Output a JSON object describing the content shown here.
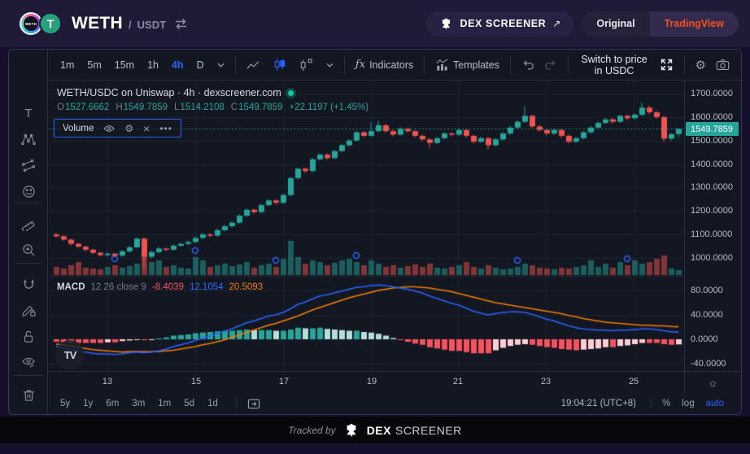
{
  "header": {
    "pair_base": "WETH",
    "pair_sep": "/",
    "pair_quote": "USDT",
    "dex_button": "DEX SCREENER",
    "dex_arrow": "↗",
    "tab_original": "Original",
    "tab_tradingview": "TradingView"
  },
  "toolbar": {
    "tf": [
      "1m",
      "5m",
      "15m",
      "1h",
      "4h",
      "D"
    ],
    "active_tf": "4h",
    "fx": "ƒx",
    "indicators": "Indicators",
    "templates": "Templates",
    "switch_label": "Switch to price in USDC"
  },
  "sidebar": {
    "tools": [
      "text",
      "xabcd-pattern",
      "parallel-channel",
      "emoji",
      "ruler",
      "zoom-in",
      "magnet",
      "drawing-lock",
      "lock-open",
      "hide-drawings",
      "remove-drawings",
      "object-tree"
    ]
  },
  "legend": {
    "title": "WETH/USDC on Uniswap · 4h · dexscreener.com",
    "o_label": "O",
    "o": "1527.6662",
    "h_label": "H",
    "h": "1549.7859",
    "l_label": "L",
    "l": "1514.2108",
    "c_label": "C",
    "c": "1549.7859",
    "change": "+22.1197 (+1.45%)"
  },
  "volume_box": {
    "label": "Volume",
    "more": "•••",
    "close": "×"
  },
  "macd_legend": {
    "name": "MACD",
    "params": "12 26 close 9",
    "hist_value": "-8.4039",
    "macd_value": "12.1054",
    "signal_value": "20.5093"
  },
  "price_axis": {
    "labels": [
      "1700.0000",
      "1600.0000",
      "1500.0000",
      "1400.0000",
      "1300.0000",
      "1200.0000",
      "1100.0000",
      "1000.0000"
    ],
    "badge": "1549.7859"
  },
  "macd_axis": {
    "labels": [
      "80.0000",
      "40.0000",
      "0.0000",
      "-40.0000"
    ],
    "gear": "☼"
  },
  "time_axis": {
    "labels": [
      "13",
      "15",
      "17",
      "19",
      "21",
      "23",
      "25"
    ]
  },
  "bottom": {
    "ranges": [
      "5y",
      "1y",
      "6m",
      "3m",
      "1m",
      "5d",
      "1d"
    ],
    "time": "19:04:21 (UTC+8)",
    "percent": "%",
    "log": "log",
    "auto": "auto"
  },
  "footer": {
    "tracked": "Tracked by",
    "brand_bold": "DEX",
    "brand_light": "SCREENER"
  },
  "tv_watermark": "TV",
  "chart_data": {
    "type": "candlestick",
    "pair": "WETH/USDC",
    "venue": "Uniswap",
    "interval": "4h",
    "current_price": 1549.7859,
    "price_axis_ticks": [
      1700,
      1600,
      1500,
      1400,
      1300,
      1200,
      1100,
      1000
    ],
    "macd_axis_ticks": [
      80,
      40,
      0,
      -40
    ],
    "x_day_labels": [
      13,
      15,
      17,
      19,
      21,
      23,
      25
    ],
    "candles": [
      [
        1100,
        1106,
        1086,
        1092,
        10
      ],
      [
        1092,
        1096,
        1072,
        1078,
        8
      ],
      [
        1078,
        1082,
        1054,
        1060,
        12
      ],
      [
        1060,
        1066,
        1042,
        1048,
        16
      ],
      [
        1048,
        1052,
        1029,
        1035,
        9
      ],
      [
        1035,
        1039,
        1016,
        1022,
        8
      ],
      [
        1022,
        1026,
        1006,
        1012,
        7
      ],
      [
        1012,
        1024,
        1006,
        1018,
        10
      ],
      [
        1018,
        1022,
        1002,
        1010,
        12
      ],
      [
        1010,
        1034,
        1005,
        1028,
        9
      ],
      [
        1028,
        1051,
        1023,
        1045,
        11
      ],
      [
        1045,
        1088,
        1040,
        1082,
        14
      ],
      [
        1082,
        1088,
        958,
        1005,
        40
      ],
      [
        1005,
        1031,
        998,
        1025,
        16
      ],
      [
        1025,
        1046,
        1019,
        1040,
        18
      ],
      [
        1040,
        1045,
        1028,
        1035,
        10
      ],
      [
        1035,
        1058,
        1030,
        1052,
        12
      ],
      [
        1052,
        1066,
        1047,
        1060,
        9
      ],
      [
        1060,
        1074,
        1054,
        1068,
        8
      ],
      [
        1068,
        1091,
        1063,
        1085,
        22
      ],
      [
        1085,
        1106,
        1080,
        1100,
        18
      ],
      [
        1100,
        1105,
        1088,
        1095,
        10
      ],
      [
        1095,
        1124,
        1090,
        1118,
        12
      ],
      [
        1118,
        1141,
        1113,
        1135,
        14
      ],
      [
        1135,
        1156,
        1130,
        1150,
        11
      ],
      [
        1150,
        1186,
        1145,
        1180,
        13
      ],
      [
        1180,
        1211,
        1175,
        1205,
        16
      ],
      [
        1205,
        1210,
        1188,
        1195,
        9
      ],
      [
        1195,
        1231,
        1190,
        1225,
        12
      ],
      [
        1225,
        1251,
        1220,
        1245,
        14
      ],
      [
        1245,
        1250,
        1228,
        1235,
        10
      ],
      [
        1235,
        1274,
        1230,
        1268,
        20
      ],
      [
        1268,
        1346,
        1263,
        1340,
        42
      ],
      [
        1340,
        1386,
        1335,
        1380,
        22
      ],
      [
        1380,
        1385,
        1362,
        1370,
        14
      ],
      [
        1370,
        1426,
        1365,
        1420,
        18
      ],
      [
        1420,
        1446,
        1415,
        1440,
        16
      ],
      [
        1440,
        1445,
        1417,
        1425,
        12
      ],
      [
        1425,
        1461,
        1420,
        1455,
        15
      ],
      [
        1455,
        1486,
        1450,
        1480,
        18
      ],
      [
        1480,
        1506,
        1475,
        1500,
        20
      ],
      [
        1500,
        1541,
        1495,
        1535,
        16
      ],
      [
        1535,
        1540,
        1512,
        1520,
        12
      ],
      [
        1520,
        1578,
        1515,
        1540,
        18
      ],
      [
        1540,
        1584,
        1535,
        1565,
        14
      ],
      [
        1565,
        1570,
        1532,
        1540,
        10
      ],
      [
        1540,
        1546,
        1517,
        1525,
        12
      ],
      [
        1525,
        1556,
        1520,
        1550,
        9
      ],
      [
        1550,
        1555,
        1532,
        1540,
        11
      ],
      [
        1540,
        1545,
        1512,
        1520,
        13
      ],
      [
        1520,
        1526,
        1497,
        1505,
        10
      ],
      [
        1505,
        1510,
        1470,
        1490,
        14
      ],
      [
        1490,
        1516,
        1485,
        1510,
        9
      ],
      [
        1510,
        1536,
        1505,
        1530,
        8
      ],
      [
        1530,
        1535,
        1517,
        1525,
        10
      ],
      [
        1525,
        1551,
        1520,
        1545,
        12
      ],
      [
        1545,
        1550,
        1512,
        1520,
        16
      ],
      [
        1520,
        1525,
        1487,
        1495,
        10
      ],
      [
        1495,
        1516,
        1490,
        1510,
        8
      ],
      [
        1510,
        1515,
        1462,
        1480,
        12
      ],
      [
        1480,
        1511,
        1475,
        1505,
        9
      ],
      [
        1505,
        1536,
        1500,
        1530,
        7
      ],
      [
        1530,
        1561,
        1525,
        1555,
        8
      ],
      [
        1555,
        1586,
        1550,
        1580,
        10
      ],
      [
        1580,
        1645,
        1575,
        1605,
        14
      ],
      [
        1605,
        1610,
        1552,
        1560,
        12
      ],
      [
        1560,
        1566,
        1538,
        1545,
        9
      ],
      [
        1545,
        1550,
        1522,
        1530,
        8
      ],
      [
        1530,
        1551,
        1525,
        1545,
        7
      ],
      [
        1545,
        1550,
        1512,
        1520,
        9
      ],
      [
        1520,
        1525,
        1488,
        1495,
        8
      ],
      [
        1495,
        1516,
        1490,
        1510,
        10
      ],
      [
        1510,
        1541,
        1505,
        1535,
        12
      ],
      [
        1535,
        1561,
        1530,
        1555,
        18
      ],
      [
        1555,
        1581,
        1550,
        1575,
        10
      ],
      [
        1575,
        1596,
        1570,
        1590,
        14
      ],
      [
        1590,
        1595,
        1572,
        1580,
        9
      ],
      [
        1580,
        1611,
        1575,
        1605,
        16
      ],
      [
        1605,
        1610,
        1587,
        1595,
        12
      ],
      [
        1595,
        1616,
        1590,
        1610,
        18
      ],
      [
        1610,
        1662,
        1605,
        1640,
        14
      ],
      [
        1640,
        1648,
        1612,
        1620,
        16
      ],
      [
        1620,
        1626,
        1592,
        1600,
        20
      ],
      [
        1600,
        1604,
        1494,
        1508,
        24
      ],
      [
        1508,
        1531,
        1500,
        1527.6662,
        8
      ],
      [
        1527.6662,
        1549.7859,
        1514.2108,
        1549.7859,
        6
      ]
    ],
    "trade_markers": [
      8,
      19,
      30,
      41,
      63,
      78
    ],
    "macd_line": [
      -12,
      -14,
      -17,
      -19,
      -21,
      -23,
      -24,
      -24,
      -25,
      -24,
      -22,
      -21,
      -22,
      -21,
      -19,
      -16,
      -12,
      -9,
      -6,
      -2,
      2,
      5,
      9,
      13,
      17,
      22,
      27,
      30,
      34,
      38,
      40,
      44,
      50,
      57,
      61,
      66,
      71,
      73,
      76,
      79,
      82,
      85,
      86,
      88,
      89,
      88,
      86,
      84,
      82,
      79,
      76,
      71,
      67,
      63,
      59,
      56,
      51,
      46,
      43,
      40,
      42,
      44,
      45,
      45,
      44,
      41,
      37,
      33,
      30,
      26,
      22,
      19,
      17,
      16,
      15,
      15,
      14,
      15,
      15,
      16,
      17,
      17,
      16,
      14,
      12,
      12.1054
    ],
    "signal_line": [
      -8,
      -9,
      -11,
      -13,
      -15,
      -17,
      -18,
      -19,
      -20,
      -21,
      -20,
      -20,
      -20.5,
      -20.5,
      -20,
      -19,
      -18,
      -16,
      -14,
      -12,
      -9,
      -7,
      -4,
      -1,
      3,
      7,
      11,
      15,
      19,
      23,
      26,
      30,
      34,
      38,
      43,
      48,
      52,
      56,
      60,
      64,
      68,
      71,
      74,
      77,
      80,
      82,
      84,
      85,
      86,
      86,
      85,
      84,
      82,
      80,
      78,
      75,
      72,
      69,
      66,
      63,
      60,
      58,
      56,
      54,
      52,
      50,
      48,
      46,
      44,
      42,
      39,
      37,
      34,
      32,
      30,
      28,
      27,
      26,
      25,
      24,
      23,
      23,
      22,
      22,
      21,
      20.5093
    ],
    "colors": {
      "up": "#26a69a",
      "down": "#ef5350",
      "vol_up": "rgba(38,166,154,0.5)",
      "vol_down": "rgba(239,83,80,0.5)",
      "macd": "#2962ff",
      "signal": "#f57c00",
      "hist_up": "#26a69a",
      "hist_up_fade": "#b2dfdb",
      "hist_down": "#f7525f",
      "hist_down_fade": "#ffcdd2",
      "price_line": "#26a69a",
      "marker": "#2962ff",
      "grid": "rgba(255,255,255,0.05)"
    }
  }
}
